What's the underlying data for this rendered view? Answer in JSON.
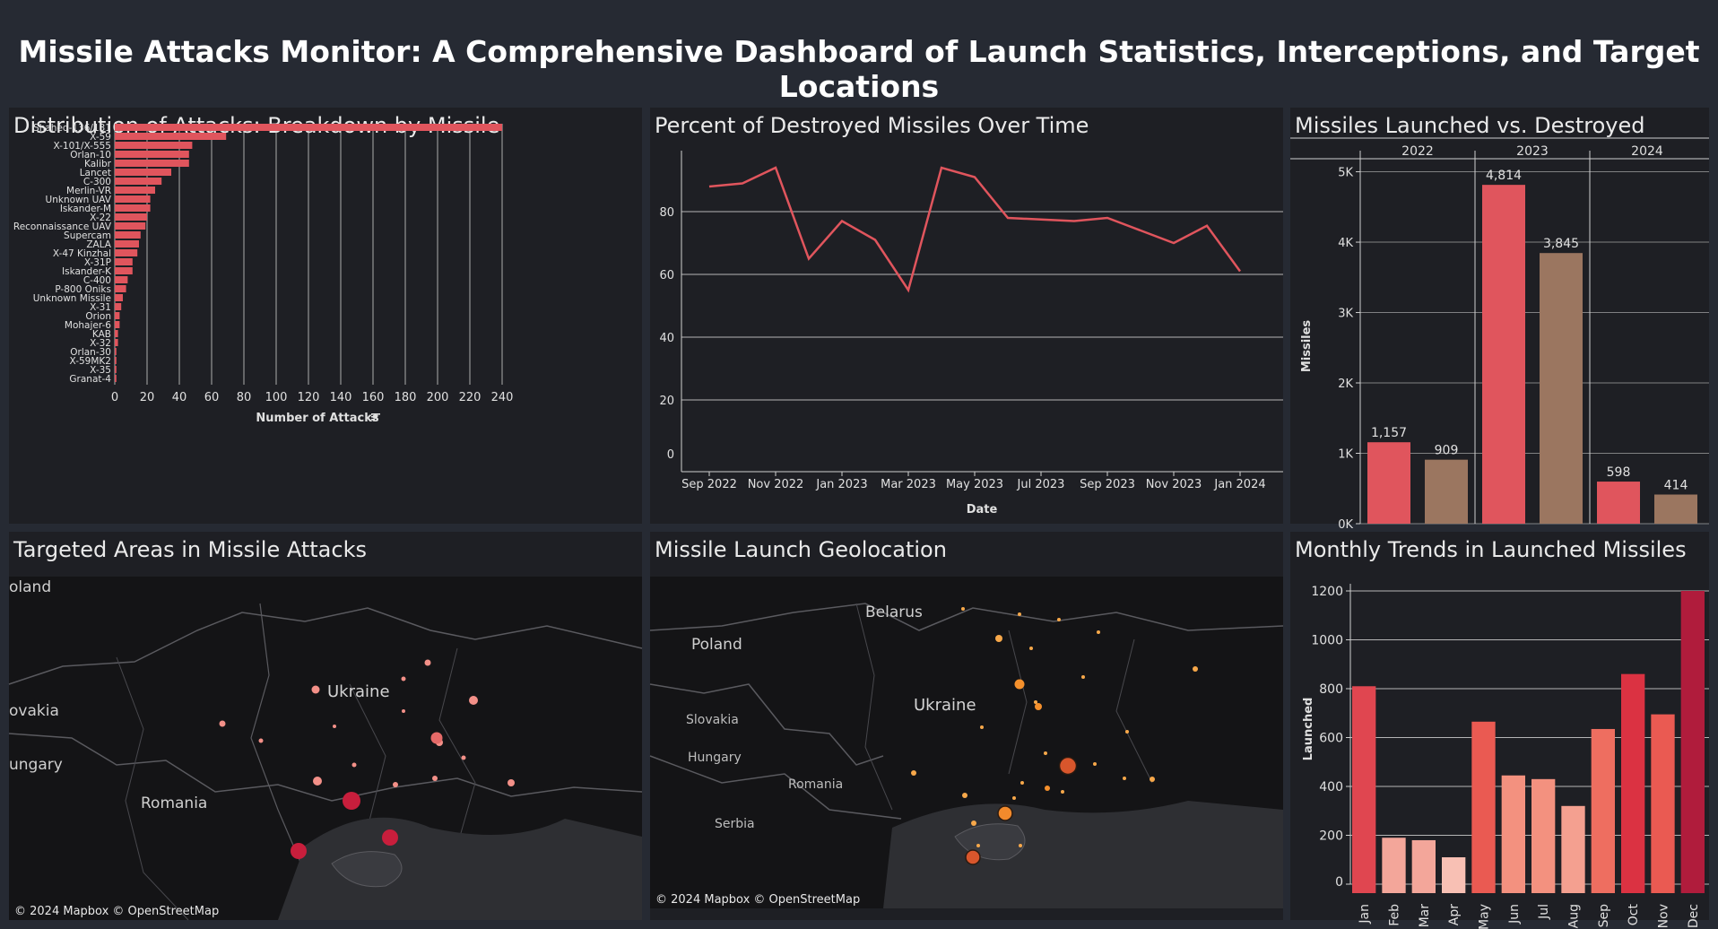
{
  "dashboard": {
    "title": "Missile Attacks Monitor: A Comprehensive Dashboard of Launch Statistics, Interceptions, and Target Locations"
  },
  "colors": {
    "background": "#262a33",
    "panel": "#1e1f24",
    "bar_red": "#e0555d",
    "bar_brown": "#9b7660",
    "line_red": "#e0555d",
    "gridline": "#d0d0d0"
  },
  "panels": {
    "distribution": {
      "title": "Distribution of Attacks: Breakdown by Missile",
      "xlabel": "Number of Attacks",
      "sort_icon": "sort-descending-icon"
    },
    "destroyed_pct": {
      "title": "Percent of Destroyed Missiles Over Time",
      "xlabel": "Date"
    },
    "launched_vs_destroyed": {
      "title": "Missiles Launched vs. Destroyed",
      "ylabel": "Missiles"
    },
    "targeted_areas": {
      "title": "Targeted Areas in Missile Attacks",
      "labels": [
        "oland",
        "Ukraine",
        "ovakia",
        "ungary",
        "Romania"
      ],
      "credit": "© 2024 Mapbox © OpenStreetMap"
    },
    "launch_geo": {
      "title": "Missile Launch Geolocation",
      "labels": [
        "Belarus",
        "Poland",
        "Ukraine",
        "Slovakia",
        "Hungary",
        "Romania",
        "Serbia"
      ],
      "credit": "© 2024 Mapbox © OpenStreetMap"
    },
    "monthly": {
      "title": "Monthly Trends in Launched Missiles",
      "ylabel": "Launched"
    }
  },
  "chart_data": [
    {
      "id": "distribution",
      "type": "bar",
      "orientation": "horizontal",
      "categories": [
        "Shahed-136/131",
        "X-59",
        "X-101/X-555",
        "Orlan-10",
        "Kalibr",
        "Lancet",
        "C-300",
        "Merlin-VR",
        "Unknown UAV",
        "Iskander-M",
        "X-22",
        "Reconnaissance UAV",
        "Supercam",
        "ZALA",
        "X-47 Kinzhal",
        "X-31P",
        "Iskander-K",
        "C-400",
        "P-800 Oniks",
        "Unknown Missile",
        "X-31",
        "Orion",
        "Mohajer-6",
        "KAB",
        "X-32",
        "Orlan-30",
        "X-59MK2",
        "X-35",
        "Granat-4"
      ],
      "values": [
        240,
        69,
        48,
        46,
        46,
        35,
        29,
        25,
        22,
        22,
        20,
        19,
        16,
        15,
        14,
        11,
        11,
        8,
        7,
        5,
        4,
        3,
        3,
        2,
        2,
        1,
        1,
        1,
        1
      ],
      "xlabel": "Number of Attacks",
      "xlim": [
        0,
        250
      ],
      "xticks": [
        0,
        20,
        40,
        60,
        80,
        100,
        120,
        140,
        160,
        180,
        200,
        220,
        240
      ],
      "grid": true
    },
    {
      "id": "destroyed_pct",
      "type": "line",
      "x": [
        "Sep 2022",
        "Oct 2022",
        "Nov 2022",
        "Dec 2022",
        "Jan 2023",
        "Feb 2023",
        "Mar 2023",
        "Apr 2023",
        "May 2023",
        "Jun 2023",
        "Jul 2023",
        "Aug 2023",
        "Sep 2023",
        "Oct 2023",
        "Nov 2023",
        "Dec 2023",
        "Jan 2024"
      ],
      "values": [
        88,
        89,
        94,
        65,
        77,
        71,
        55,
        94,
        91,
        78,
        77.5,
        77,
        78,
        74,
        70,
        75.5,
        61
      ],
      "xticks": [
        "Sep 2022",
        "Nov 2022",
        "Jan 2023",
        "Mar 2023",
        "May 2023",
        "Jul 2023",
        "Sep 2023",
        "Nov 2023",
        "Jan 2024"
      ],
      "yticks": [
        0,
        20,
        40,
        60,
        80
      ],
      "ylim": [
        0,
        100
      ],
      "xlabel": "Date",
      "grid": true
    },
    {
      "id": "launched_vs_destroyed",
      "type": "bar",
      "categories": [
        "2022",
        "2023",
        "2024"
      ],
      "series": [
        {
          "values": [
            1157,
            4814,
            598
          ]
        },
        {
          "values": [
            909,
            3845,
            414
          ]
        }
      ],
      "data_labels": [
        [
          "1,157",
          "909"
        ],
        [
          "4,814",
          "3,845"
        ],
        [
          "598",
          "414"
        ]
      ],
      "yticks": [
        "0K",
        "1K",
        "2K",
        "3K",
        "4K",
        "5K"
      ],
      "ylim": [
        0,
        5300
      ],
      "ylabel": "Missiles",
      "grid": true
    },
    {
      "id": "monthly",
      "type": "bar",
      "categories": [
        "Jan",
        "Feb",
        "Mar",
        "Apr",
        "May",
        "Jun",
        "Jul",
        "Aug",
        "Sep",
        "Oct",
        "Nov",
        "Dec"
      ],
      "values": [
        810,
        190,
        180,
        110,
        665,
        445,
        430,
        320,
        635,
        860,
        695,
        1200
      ],
      "bar_colors": [
        "#e04650",
        "#f3a69a",
        "#f3a69a",
        "#f8c0b4",
        "#ea5a52",
        "#f3917f",
        "#f3917f",
        "#f4a090",
        "#ee6e60",
        "#db3242",
        "#ea5a52",
        "#b01c3c"
      ],
      "yticks": [
        0,
        200,
        400,
        600,
        800,
        1000,
        1200
      ],
      "ylim": [
        0,
        1260
      ],
      "ylabel": "Launched",
      "grid": true
    }
  ]
}
